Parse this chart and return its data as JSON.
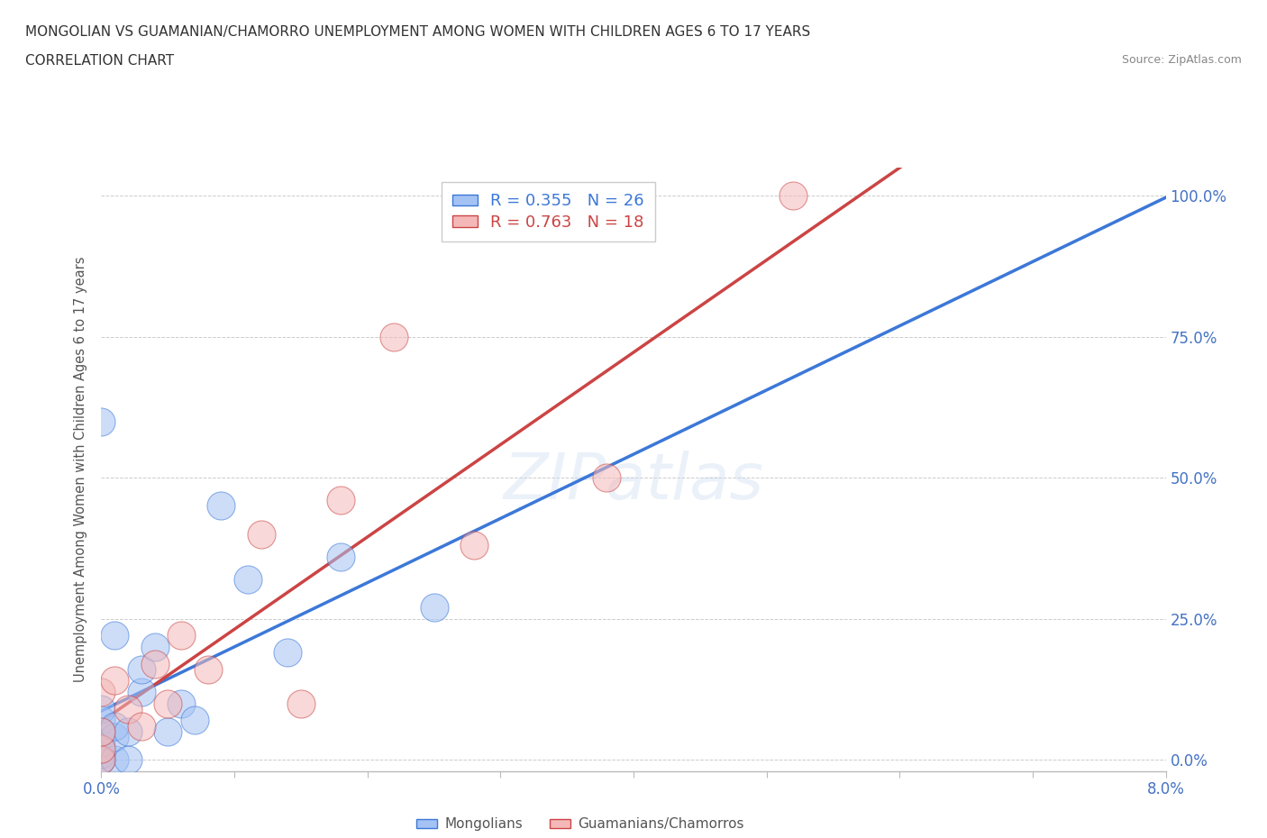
{
  "title_line1": "MONGOLIAN VS GUAMANIAN/CHAMORRO UNEMPLOYMENT AMONG WOMEN WITH CHILDREN AGES 6 TO 17 YEARS",
  "title_line2": "CORRELATION CHART",
  "source_text": "Source: ZipAtlas.com",
  "ylabel": "Unemployment Among Women with Children Ages 6 to 17 years",
  "xlim": [
    0.0,
    0.08
  ],
  "ylim": [
    -0.02,
    1.05
  ],
  "xticks": [
    0.0,
    0.01,
    0.02,
    0.03,
    0.04,
    0.05,
    0.06,
    0.07,
    0.08
  ],
  "xtick_labels": [
    "0.0%",
    "",
    "",
    "",
    "",
    "",
    "",
    "",
    "8.0%"
  ],
  "ytick_labels": [
    "0.0%",
    "25.0%",
    "50.0%",
    "75.0%",
    "100.0%"
  ],
  "yticks": [
    0.0,
    0.25,
    0.5,
    0.75,
    1.0
  ],
  "mongolian_R": 0.355,
  "mongolian_N": 26,
  "guamanian_R": 0.763,
  "guamanian_N": 18,
  "mongolian_color": "#a4c2f4",
  "guamanian_color": "#f4b8b8",
  "mongolian_line_color": "#3c78d8",
  "guamanian_line_color": "#cc4444",
  "mongolian_x": [
    0.0,
    0.0,
    0.0,
    0.0,
    0.0,
    0.0,
    0.0,
    0.0,
    0.0,
    0.001,
    0.001,
    0.001,
    0.001,
    0.002,
    0.002,
    0.003,
    0.003,
    0.004,
    0.005,
    0.006,
    0.007,
    0.009,
    0.011,
    0.014,
    0.018,
    0.025
  ],
  "mongolian_y": [
    0.0,
    0.0,
    0.01,
    0.02,
    0.03,
    0.05,
    0.07,
    0.09,
    0.6,
    0.0,
    0.04,
    0.06,
    0.22,
    0.0,
    0.05,
    0.12,
    0.16,
    0.2,
    0.05,
    0.1,
    0.07,
    0.45,
    0.32,
    0.19,
    0.36,
    0.27
  ],
  "guamanian_x": [
    0.0,
    0.0,
    0.0,
    0.0,
    0.001,
    0.002,
    0.003,
    0.004,
    0.005,
    0.006,
    0.008,
    0.012,
    0.015,
    0.018,
    0.022,
    0.028,
    0.038,
    0.052
  ],
  "guamanian_y": [
    0.0,
    0.02,
    0.05,
    0.12,
    0.14,
    0.09,
    0.06,
    0.17,
    0.1,
    0.22,
    0.16,
    0.4,
    0.1,
    0.46,
    0.75,
    0.38,
    0.5,
    1.0
  ]
}
